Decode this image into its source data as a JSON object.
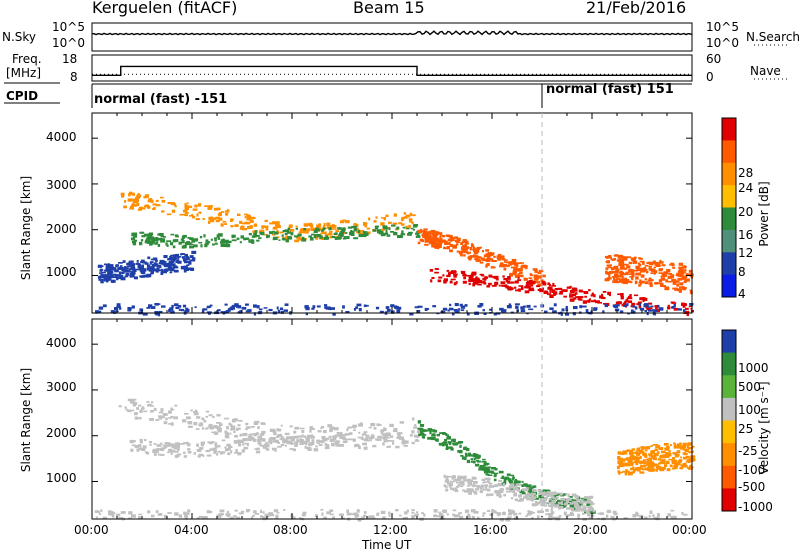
{
  "header": {
    "station": "Kerguelen (fitACF)",
    "beam": "Beam 15",
    "date": "21/Feb/2016"
  },
  "noise_panel": {
    "left_label": "N.Sky",
    "left_ticks": [
      "10^5",
      "10^0"
    ],
    "right_ticks": [
      "10^5",
      "10^0"
    ],
    "right_label": "N.Search",
    "legend_style": "dotted"
  },
  "freq_panel": {
    "left_label_1": "Freq.",
    "left_label_2": "[MHz]",
    "left_ticks": [
      "18",
      "8"
    ],
    "right_ticks": [
      "60",
      "0"
    ],
    "right_label": "Nave",
    "freq_range": [
      8,
      18
    ],
    "nave_range": [
      0,
      60
    ],
    "freq_segments": [
      {
        "start": 0.0,
        "end": 1.15,
        "freq": 10.2
      },
      {
        "start": 1.15,
        "end": 13.0,
        "freq": 13.6
      },
      {
        "start": 13.0,
        "end": 24.0,
        "freq": 10.2
      }
    ],
    "nave_level": 15.5
  },
  "cpid": {
    "label": "CPID",
    "segments": [
      {
        "name": "normal (fast) -151",
        "start": 0.0
      },
      {
        "name": "normal (fast) 151",
        "start": 18.0
      }
    ]
  },
  "chart_data": [
    {
      "type": "heatmap",
      "title": "Power",
      "ylabel": "Slant Range [km]",
      "xlabel": "Time UT",
      "xlim": [
        0,
        24
      ],
      "ylim": [
        180,
        4550
      ],
      "yticks": [
        "4000",
        "3000",
        "2000",
        "1000"
      ],
      "xticks": [
        "00:00",
        "04:00",
        "08:00",
        "12:00",
        "16:00",
        "20:00",
        "00:00"
      ],
      "colorbar": {
        "label": "Power [dB]",
        "ticks": [
          "28",
          "24",
          "20",
          "16",
          "12",
          "8",
          "4"
        ],
        "colors": [
          "#e00000",
          "#ff5a00",
          "#ff8f00",
          "#ffbf00",
          "#2e8b3a",
          "#508f7a",
          "#1f3fa8",
          "#0a1de6"
        ]
      },
      "scatter_bands": [
        {
          "t": [
            1.0,
            4.0,
            6.0,
            8.0,
            10.0,
            13.0
          ],
          "r": [
            2700,
            2450,
            2200,
            1950,
            2050,
            2250
          ],
          "w": 180,
          "c": "#ff8f00"
        },
        {
          "t": [
            1.5,
            4.0,
            7.0,
            10.0,
            13.0
          ],
          "r": [
            1850,
            1750,
            1900,
            1950,
            2000
          ],
          "w": 130,
          "c": "#2e8b3a"
        },
        {
          "t": [
            0.2,
            2.0,
            4.0
          ],
          "r": [
            1050,
            1200,
            1350
          ],
          "w": 200,
          "c": "#1f3fa8"
        },
        {
          "t": [
            13.0,
            14.5,
            16.0,
            18.0
          ],
          "r": [
            1900,
            1700,
            1350,
            950
          ],
          "w": 170,
          "c": "#ff5a00"
        },
        {
          "t": [
            13.5,
            16.0,
            18.0,
            20.0,
            24.0
          ],
          "r": [
            1050,
            900,
            750,
            550,
            300
          ],
          "w": 140,
          "c": "#e00000"
        },
        {
          "t": [
            20.5,
            22.0,
            24.0
          ],
          "r": [
            1200,
            1100,
            950
          ],
          "w": 300,
          "c": "#ff5a00"
        },
        {
          "t": [
            0.0,
            24.0
          ],
          "r": [
            280,
            280
          ],
          "w": 120,
          "c": "#1f3fa8"
        }
      ]
    },
    {
      "type": "heatmap",
      "title": "Velocity",
      "ylabel": "Slant Range [km]",
      "xlabel": "Time UT",
      "xlim": [
        0,
        24
      ],
      "ylim": [
        180,
        4550
      ],
      "yticks": [
        "4000",
        "3000",
        "2000",
        "1000"
      ],
      "xticks": [
        "00:00",
        "04:00",
        "08:00",
        "12:00",
        "16:00",
        "20:00",
        "00:00"
      ],
      "colorbar": {
        "label": "Velocity [m s⁻¹]",
        "ticks": [
          "1000",
          "500",
          "100",
          "25",
          "-25",
          "-100",
          "-500",
          "-1000"
        ],
        "colors": [
          "#1f3fa8",
          "#2e8b3a",
          "#5ab43a",
          "#c0c0c0",
          "#ffbf00",
          "#ff8f00",
          "#ff5a00",
          "#e00000"
        ]
      },
      "scatter_bands": [
        {
          "t": [
            1.0,
            4.0,
            6.0,
            8.0,
            10.0,
            13.0
          ],
          "r": [
            2650,
            2400,
            2150,
            2000,
            2050,
            2200
          ],
          "w": 220,
          "c": "#c0c0c0"
        },
        {
          "t": [
            1.5,
            4.0,
            7.0,
            10.0,
            13.0
          ],
          "r": [
            1800,
            1700,
            1850,
            1900,
            1950
          ],
          "w": 160,
          "c": "#c0c0c0"
        },
        {
          "t": [
            13.0,
            14.5,
            16.0,
            18.0,
            20.0
          ],
          "r": [
            2200,
            1800,
            1200,
            700,
            450
          ],
          "w": 150,
          "c": "#2e8b3a"
        },
        {
          "t": [
            14.0,
            16.0,
            18.0,
            20.0
          ],
          "r": [
            1000,
            900,
            650,
            500
          ],
          "w": 180,
          "c": "#c0c0c0"
        },
        {
          "t": [
            21.0,
            22.5,
            24.0
          ],
          "r": [
            1400,
            1550,
            1600
          ],
          "w": 280,
          "c": "#ff8f00"
        },
        {
          "t": [
            0.0,
            24.0
          ],
          "r": [
            300,
            300
          ],
          "w": 100,
          "c": "#c0c0c0"
        }
      ]
    }
  ],
  "xaxis_title": "Time UT"
}
